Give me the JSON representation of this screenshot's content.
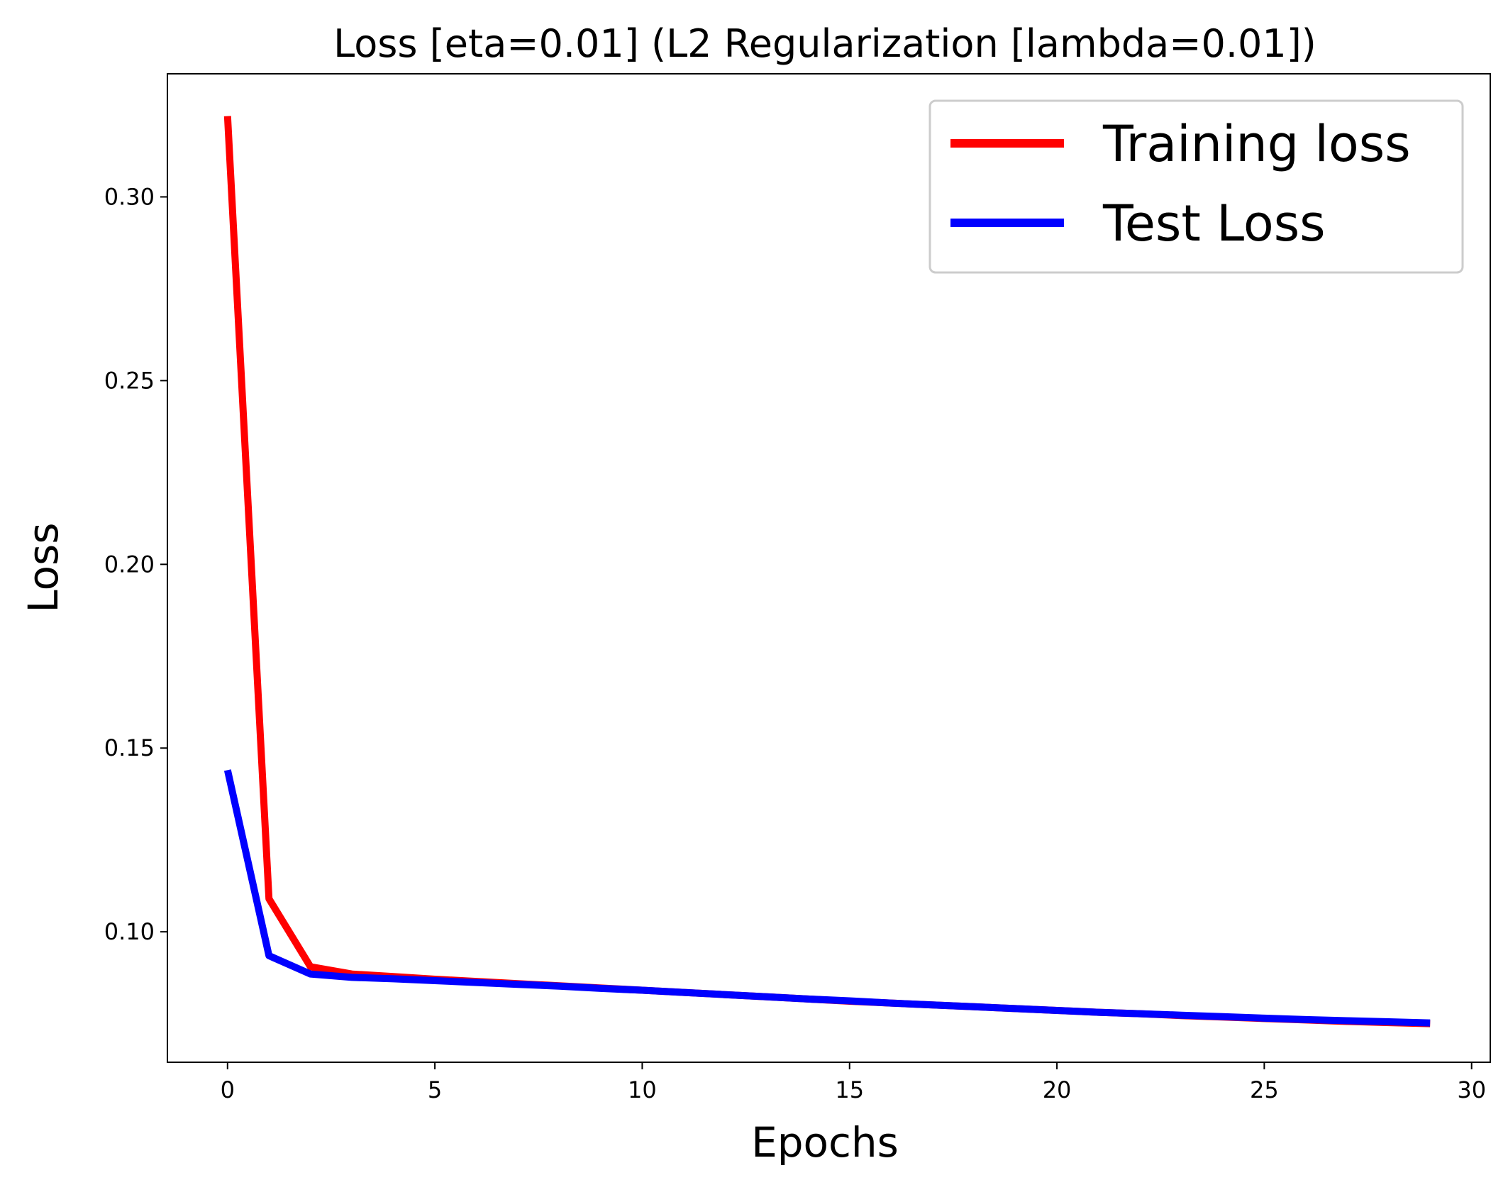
{
  "chart_data": {
    "type": "line",
    "title": "Loss [eta=0.01] (L2 Regularization [lambda=0.01])",
    "xlabel": "Epochs",
    "ylabel": "Loss",
    "xlim": [
      -1.45,
      30.45
    ],
    "ylim": [
      0.0645,
      0.3335
    ],
    "xticks": [
      0,
      5,
      10,
      15,
      20,
      25,
      30
    ],
    "xtick_labels": [
      "0",
      "5",
      "10",
      "15",
      "20",
      "25",
      "30"
    ],
    "yticks": [
      0.1,
      0.15,
      0.2,
      0.25,
      0.3
    ],
    "ytick_labels": [
      "0.10",
      "0.15",
      "0.20",
      "0.25",
      "0.30"
    ],
    "grid": false,
    "legend_position": "top-right",
    "x": [
      0,
      1,
      2,
      3,
      4,
      5,
      6,
      7,
      8,
      9,
      10,
      11,
      12,
      13,
      14,
      15,
      16,
      17,
      18,
      19,
      20,
      21,
      22,
      23,
      24,
      25,
      26,
      27,
      28,
      29
    ],
    "series": [
      {
        "name": "Training loss",
        "color": "#ff0000",
        "values": [
          0.322,
          0.109,
          0.0905,
          0.0885,
          0.0878,
          0.0871,
          0.0865,
          0.0859,
          0.0853,
          0.0847,
          0.0841,
          0.0835,
          0.0829,
          0.0823,
          0.0817,
          0.0811,
          0.0806,
          0.0801,
          0.0796,
          0.0791,
          0.0786,
          0.0781,
          0.0777,
          0.0772,
          0.0768,
          0.0764,
          0.076,
          0.0756,
          0.0753,
          0.075
        ]
      },
      {
        "name": "Test Loss",
        "color": "#0000ff",
        "values": [
          0.144,
          0.0935,
          0.0885,
          0.0876,
          0.0872,
          0.0867,
          0.0862,
          0.0857,
          0.0852,
          0.0846,
          0.0841,
          0.0835,
          0.0829,
          0.0823,
          0.0817,
          0.0812,
          0.0806,
          0.0801,
          0.0796,
          0.0791,
          0.0786,
          0.0781,
          0.0777,
          0.0773,
          0.0769,
          0.0765,
          0.0761,
          0.0758,
          0.0755,
          0.0752
        ]
      }
    ]
  }
}
